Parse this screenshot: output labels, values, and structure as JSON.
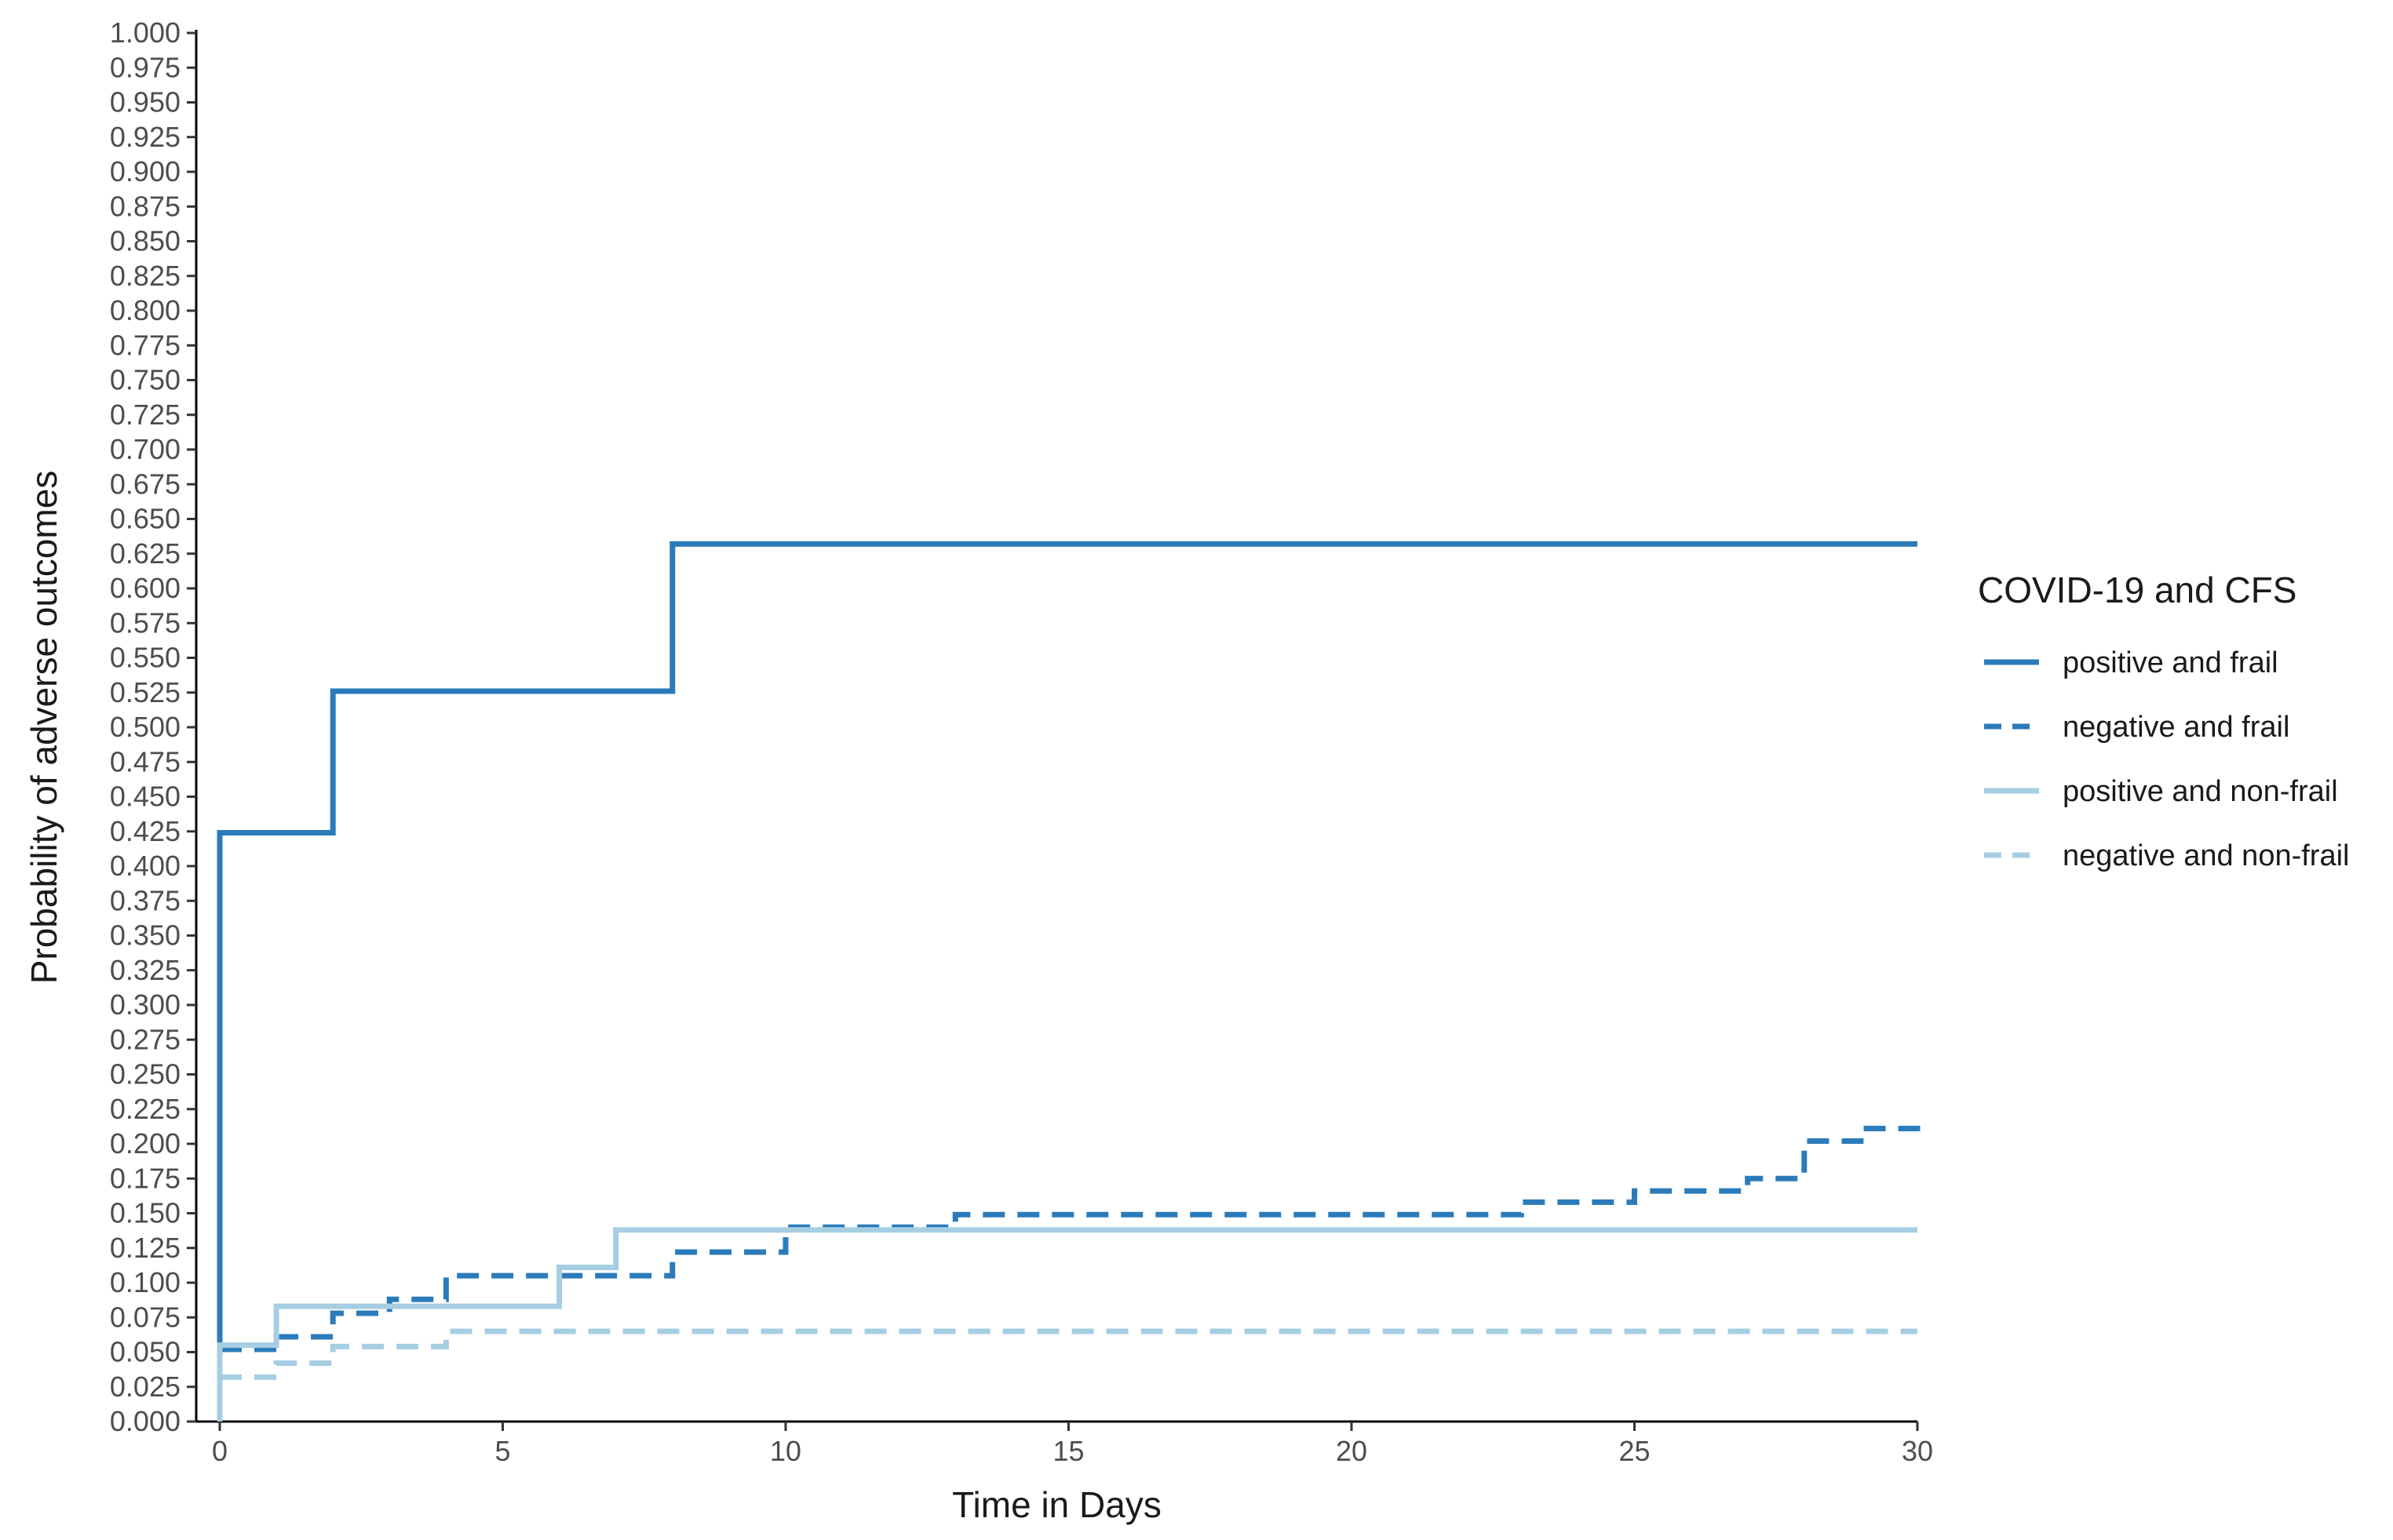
{
  "chart_data": {
    "type": "line",
    "step": true,
    "xlabel": "Time in Days",
    "ylabel": "Probability of adverse outcomes",
    "xlim": [
      0,
      30
    ],
    "ylim": [
      0,
      1
    ],
    "x_ticks": [
      0,
      5,
      10,
      15,
      20,
      25,
      30
    ],
    "x_tick_labels": [
      "0",
      "5",
      "10",
      "15",
      "20",
      "25",
      "30"
    ],
    "y_ticks": [
      0,
      0.025,
      0.05,
      0.075,
      0.1,
      0.125,
      0.15,
      0.175,
      0.2,
      0.225,
      0.25,
      0.275,
      0.3,
      0.325,
      0.35,
      0.375,
      0.4,
      0.425,
      0.45,
      0.475,
      0.5,
      0.525,
      0.55,
      0.575,
      0.6,
      0.625,
      0.65,
      0.675,
      0.7,
      0.725,
      0.75,
      0.775,
      0.8,
      0.825,
      0.85,
      0.875,
      0.9,
      0.925,
      0.95,
      0.975,
      1.0
    ],
    "y_tick_labels": [
      "0.000",
      "0.025",
      "0.050",
      "0.075",
      "0.100",
      "0.125",
      "0.150",
      "0.175",
      "0.200",
      "0.225",
      "0.250",
      "0.275",
      "0.300",
      "0.325",
      "0.350",
      "0.375",
      "0.400",
      "0.425",
      "0.450",
      "0.475",
      "0.500",
      "0.525",
      "0.550",
      "0.575",
      "0.600",
      "0.625",
      "0.650",
      "0.675",
      "0.700",
      "0.725",
      "0.750",
      "0.775",
      "0.800",
      "0.825",
      "0.850",
      "0.875",
      "0.900",
      "0.925",
      "0.950",
      "0.975",
      "1.000"
    ],
    "grid": false,
    "legend": {
      "title": "COVID-19 and CFS",
      "position": "right"
    },
    "series": [
      {
        "name": "positive and frail",
        "color": "#2b7bba",
        "linestyle": "solid",
        "x": [
          0,
          0,
          2,
          8,
          30
        ],
        "y": [
          0.0,
          0.424,
          0.526,
          0.632,
          0.632
        ]
      },
      {
        "name": "negative and frail",
        "color": "#2b7bba",
        "linestyle": "dashed",
        "x": [
          0,
          1,
          2,
          3,
          4,
          6,
          8,
          10,
          13,
          23,
          25,
          27,
          28,
          29,
          30
        ],
        "y": [
          0.052,
          0.061,
          0.078,
          0.088,
          0.105,
          0.105,
          0.122,
          0.14,
          0.149,
          0.158,
          0.166,
          0.175,
          0.202,
          0.211,
          0.215
        ]
      },
      {
        "name": "positive and non-frail",
        "color": "#a6cee3",
        "linestyle": "solid",
        "x": [
          0,
          0,
          1,
          6,
          7,
          30
        ],
        "y": [
          0.0,
          0.055,
          0.083,
          0.111,
          0.138,
          0.138
        ]
      },
      {
        "name": "negative and non-frail",
        "color": "#a6cee3",
        "linestyle": "dashed",
        "x": [
          0,
          1,
          2,
          4,
          30
        ],
        "y": [
          0.032,
          0.042,
          0.054,
          0.065,
          0.065
        ]
      }
    ]
  }
}
